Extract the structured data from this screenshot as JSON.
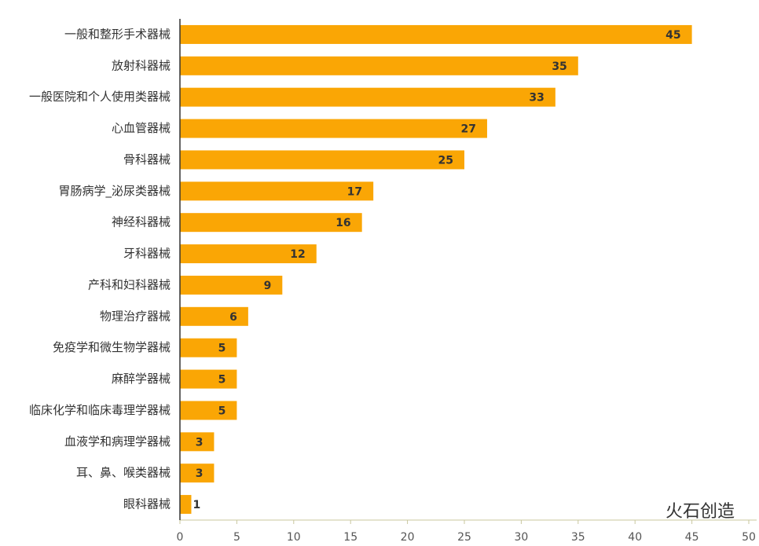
{
  "chart_data": {
    "type": "bar",
    "orientation": "horizontal",
    "categories": [
      "一般和整形手术器械",
      "放射科器械",
      "一般医院和个人使用类器械",
      "心血管器械",
      "骨科器械",
      "胃肠病学_泌尿类器械",
      "神经科器械",
      "牙科器械",
      "产科和妇科器械",
      "物理治疗器械",
      "免疫学和微生物学器械",
      "麻醉学器械",
      "临床化学和临床毒理学器械",
      "血液学和病理学器械",
      "耳、鼻、喉类器械",
      "眼科器械"
    ],
    "values": [
      45,
      35,
      33,
      27,
      25,
      17,
      16,
      12,
      9,
      6,
      5,
      5,
      5,
      3,
      3,
      1
    ],
    "color": "#faa605",
    "xlim": [
      0,
      50
    ],
    "xticks": [
      0,
      5,
      10,
      15,
      20,
      25,
      30,
      35,
      40,
      45,
      50
    ],
    "watermark": "火石创造"
  }
}
